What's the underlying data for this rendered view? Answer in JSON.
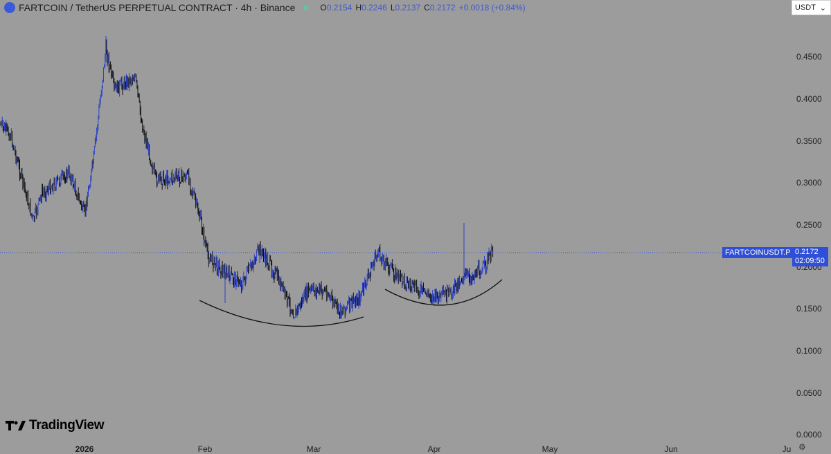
{
  "header": {
    "title": "FARTCOIN / TetherUS PERPETUAL CONTRACT · 4h · Binance",
    "open_label": "O",
    "open": "0.2154",
    "high_label": "H",
    "high": "0.2246",
    "low_label": "L",
    "low": "0.2137",
    "close_label": "C",
    "close": "0.2172",
    "change": "+0.0018 (+0.84%)"
  },
  "currency_select": {
    "value": "USDT"
  },
  "price_axis": {
    "ticks": [
      "0.4500",
      "0.4000",
      "0.3500",
      "0.3000",
      "0.2500",
      "0.2000",
      "0.1500",
      "0.1000",
      "0.0500",
      "0.0000"
    ]
  },
  "time_axis": {
    "ticks": [
      {
        "label": "2026",
        "bold": true
      },
      {
        "label": "Feb",
        "bold": false
      },
      {
        "label": "Mar",
        "bold": false
      },
      {
        "label": "Apr",
        "bold": false
      },
      {
        "label": "May",
        "bold": false
      },
      {
        "label": "Jun",
        "bold": false
      },
      {
        "label": "Ju",
        "bold": false
      }
    ]
  },
  "last_price": {
    "symbol": "FARTCOINUSDT.P",
    "price": "0.2172",
    "countdown": "02:09:50"
  },
  "branding": {
    "logo_text": "TradingView"
  },
  "colors": {
    "background": "#9c9c9c",
    "accent": "#2f4fd8",
    "up": "#2a3fc8",
    "down": "#111111"
  },
  "chart_data": {
    "type": "candlestick",
    "x": [
      "2026-01-01",
      "2026-01-05",
      "2026-01-08",
      "2026-01-10",
      "2026-01-15",
      "2026-01-20",
      "2026-01-26",
      "2026-02-01",
      "2026-02-05",
      "2026-02-10",
      "2026-02-15",
      "2026-02-20",
      "2026-02-25",
      "2026-03-01",
      "2026-03-05",
      "2026-03-10",
      "2026-03-15",
      "2026-03-20",
      "2026-03-25",
      "2026-04-01",
      "2026-04-05",
      "2026-04-10",
      "2026-04-15"
    ],
    "close": [
      0.33,
      0.36,
      0.45,
      0.4,
      0.42,
      0.36,
      0.31,
      0.25,
      0.2,
      0.19,
      0.21,
      0.17,
      0.14,
      0.17,
      0.16,
      0.15,
      0.16,
      0.21,
      0.19,
      0.16,
      0.165,
      0.19,
      0.217
    ],
    "annotations": [
      "rounded-bottom-curve",
      "rounded-bottom-curve"
    ],
    "ylim": [
      0,
      0.47
    ]
  }
}
